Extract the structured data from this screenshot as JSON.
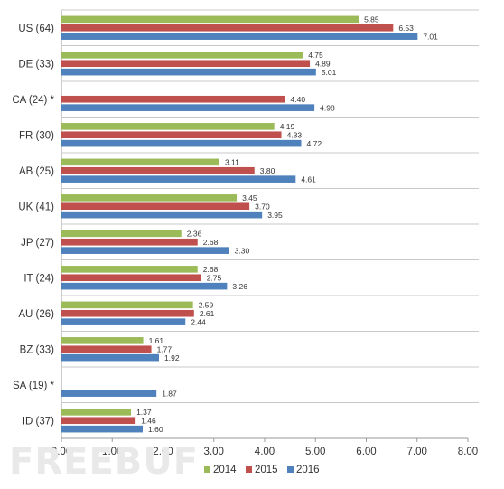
{
  "chart_data": {
    "type": "bar",
    "orientation": "horizontal",
    "categories": [
      "US (64)",
      "DE (33)",
      "CA (24) *",
      "FR (30)",
      "AB (25)",
      "UK (41)",
      "JP (27)",
      "IT (24)",
      "AU (26)",
      "BZ (33)",
      "SA (19) *",
      "ID (37)"
    ],
    "series": [
      {
        "name": "2014",
        "color": "#9bbb59",
        "values": [
          5.85,
          4.75,
          null,
          4.19,
          3.11,
          3.45,
          2.36,
          2.68,
          2.59,
          1.61,
          null,
          1.37
        ]
      },
      {
        "name": "2015",
        "color": "#c0504d",
        "values": [
          6.53,
          4.89,
          4.4,
          4.33,
          3.8,
          3.7,
          2.68,
          2.75,
          2.61,
          1.77,
          null,
          1.46
        ]
      },
      {
        "name": "2016",
        "color": "#4f81bd",
        "values": [
          7.01,
          5.01,
          4.98,
          4.72,
          4.61,
          3.95,
          3.3,
          3.26,
          2.44,
          1.92,
          1.87,
          1.6
        ]
      }
    ],
    "xlim": [
      0,
      8
    ],
    "xticks": [
      "0.00",
      "1.00",
      "2.00",
      "3.00",
      "4.00",
      "5.00",
      "6.00",
      "7.00",
      "8.00"
    ],
    "legend_position": "bottom",
    "grid": false
  },
  "watermark": "FREEBUF"
}
